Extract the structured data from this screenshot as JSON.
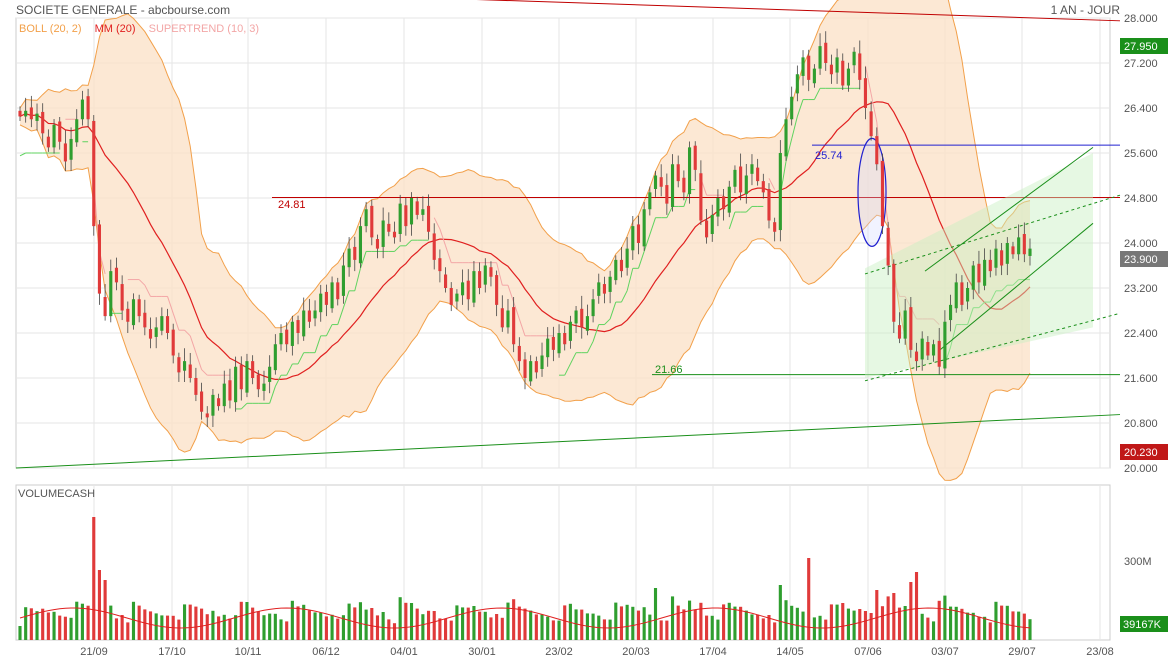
{
  "header": {
    "title": "SOCIETE GENERALE - abcbourse.com",
    "period": "1 AN - JOUR"
  },
  "legend": {
    "boll": "BOLL (20, 2)",
    "mm": "MM (20)",
    "supertrend": "SUPERTREND (10, 3)"
  },
  "colors": {
    "up": "#2f9e2f",
    "down": "#e03a3a",
    "boll_fill": "#fbe0c6",
    "boll_line": "#f2a04a",
    "mm": "#e02020",
    "supertrend_up": "#5fd35f",
    "supertrend_down": "#f3a6a6",
    "resistance": "#c00000",
    "support": "#1a8f1a",
    "blue_line": "#2020d0"
  },
  "annotations": {
    "resistance_label": "24.81",
    "support_label": "21.66",
    "blue_label": "25.74"
  },
  "badges": {
    "last_price": "23.900",
    "top_line": "27.950",
    "bottom_line": "20.230",
    "volume_last": "39167K"
  },
  "volume_panel": {
    "title": "VOLUMECASH",
    "tick_label": "300M"
  },
  "chart_data": {
    "type": "candlestick",
    "title": "SOCIETE GENERALE - abcbourse.com",
    "price_axis": {
      "ticks": [
        "20.000",
        "20.800",
        "21.600",
        "22.400",
        "23.200",
        "24.000",
        "24.800",
        "25.600",
        "26.400",
        "27.200",
        "28.000"
      ],
      "range": [
        20.0,
        28.0
      ]
    },
    "x_ticks": [
      "21/09",
      "17/10",
      "10/11",
      "06/12",
      "04/01",
      "30/01",
      "23/02",
      "20/03",
      "17/04",
      "14/05",
      "07/06",
      "03/07",
      "29/07",
      "23/08"
    ],
    "levels": [
      {
        "label": "24.81",
        "value": 24.81
      },
      {
        "label": "21.66",
        "value": 21.66
      },
      {
        "label": "25.74",
        "value": 25.74
      }
    ],
    "trendlines": [
      {
        "name": "resistance",
        "from": 28.6,
        "to": 27.95
      },
      {
        "name": "support",
        "from": 20.0,
        "to": 20.95
      }
    ],
    "last_price": 23.9,
    "series": [
      {
        "name": "SOCIETE GENERALE",
        "close": [
          26.25,
          26.35,
          26.2,
          26.3,
          25.95,
          25.7,
          26.1,
          25.8,
          25.45,
          25.85,
          26.2,
          26.55,
          26.2,
          24.3,
          23.1,
          22.7,
          23.5,
          23.3,
          22.8,
          22.6,
          23.0,
          22.7,
          22.5,
          22.3,
          22.5,
          22.7,
          22.4,
          22.0,
          21.7,
          21.9,
          21.6,
          21.3,
          21.0,
          20.9,
          21.3,
          21.1,
          21.5,
          21.2,
          21.8,
          21.4,
          21.9,
          21.6,
          21.4,
          21.5,
          21.8,
          22.2,
          22.4,
          22.2,
          22.6,
          22.4,
          22.8,
          22.6,
          22.8,
          23.1,
          22.9,
          23.3,
          23.0,
          23.6,
          23.9,
          23.7,
          24.3,
          24.6,
          24.1,
          23.9,
          24.4,
          24.2,
          24.1,
          24.7,
          24.3,
          24.8,
          24.5,
          24.6,
          24.2,
          23.7,
          23.5,
          23.2,
          22.9,
          23.1,
          23.3,
          23.0,
          23.5,
          23.2,
          23.6,
          23.4,
          22.9,
          22.5,
          22.8,
          22.2,
          21.9,
          21.6,
          21.9,
          21.7,
          22.0,
          22.3,
          22.1,
          22.4,
          22.2,
          22.6,
          22.8,
          22.5,
          22.7,
          23.0,
          23.3,
          23.1,
          23.4,
          23.7,
          23.5,
          23.9,
          24.3,
          24.0,
          24.6,
          24.9,
          25.2,
          25.0,
          24.7,
          25.4,
          25.1,
          24.9,
          25.7,
          25.3,
          24.4,
          24.1,
          24.5,
          24.8,
          24.6,
          25.0,
          25.3,
          24.9,
          25.2,
          25.4,
          25.1,
          24.9,
          24.4,
          24.2,
          25.6,
          26.2,
          26.6,
          27.0,
          27.3,
          26.9,
          27.1,
          27.5,
          27.2,
          27.0,
          27.3,
          26.8,
          27.1,
          27.4,
          26.9,
          26.4,
          25.9,
          25.4,
          24.3,
          23.6,
          22.6,
          22.3,
          22.8,
          22.1,
          21.9,
          22.3,
          22.0,
          22.2,
          21.8,
          22.6,
          22.9,
          23.3,
          22.9,
          23.2,
          23.6,
          23.3,
          23.7,
          23.5,
          23.9,
          23.6,
          24.0,
          23.8,
          24.1,
          23.8,
          23.9
        ]
      }
    ]
  }
}
